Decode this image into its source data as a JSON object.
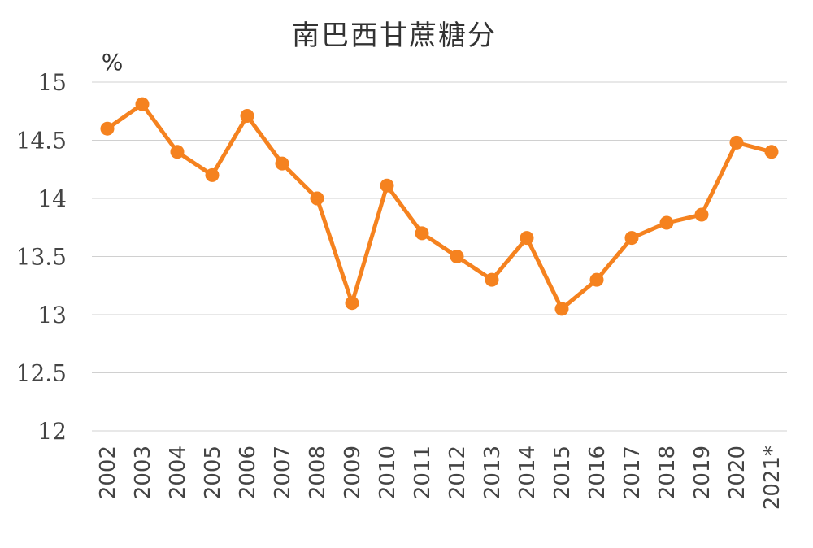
{
  "chart_data": {
    "type": "line",
    "title": "南巴西甘蔗糖分",
    "ylabel": "%",
    "xlabel": "",
    "categories": [
      "2002",
      "2003",
      "2004",
      "2005",
      "2006",
      "2007",
      "2008",
      "2009",
      "2010",
      "2011",
      "2012",
      "2013",
      "2014",
      "2015",
      "2016",
      "2017",
      "2018",
      "2019",
      "2020",
      "2021*"
    ],
    "yticks": [
      "12",
      "12.5",
      "13",
      "13.5",
      "14",
      "14.5",
      "15"
    ],
    "ylim": [
      12,
      15
    ],
    "grid": true,
    "legend": "none",
    "series": [
      {
        "values": [
          14.6,
          14.81,
          14.4,
          14.2,
          14.71,
          14.3,
          14.0,
          13.1,
          14.11,
          13.7,
          13.5,
          13.3,
          13.66,
          13.05,
          13.3,
          13.66,
          13.79,
          13.86,
          14.48,
          14.4
        ],
        "color": "#f5821f"
      }
    ]
  }
}
